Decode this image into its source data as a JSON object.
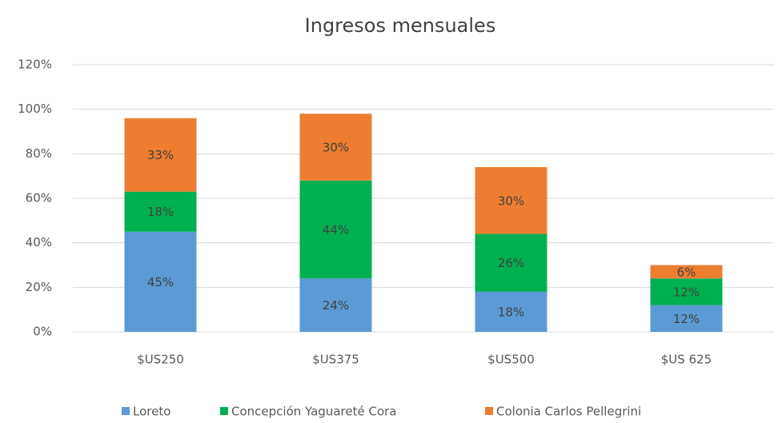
{
  "chart_data": {
    "type": "bar",
    "stacked": true,
    "title": "Ingresos mensuales",
    "categories": [
      "$US250",
      "$US375",
      "$US500",
      "$US 625"
    ],
    "series": [
      {
        "name": "Loreto",
        "color": "#5b9bd5",
        "values": [
          45,
          24,
          18,
          12
        ],
        "value_labels": [
          "45%",
          "24%",
          "18%",
          "12%"
        ]
      },
      {
        "name": "Concepción Yaguareté Cora",
        "color": "#00b050",
        "values": [
          18,
          44,
          26,
          12
        ],
        "value_labels": [
          "18%",
          "44%",
          "26%",
          "12%"
        ]
      },
      {
        "name": "Colonia Carlos Pellegrini",
        "color": "#ed7d31",
        "values": [
          33,
          30,
          30,
          6
        ],
        "value_labels": [
          "33%",
          "30%",
          "30%",
          "6%"
        ]
      }
    ],
    "ylim": [
      0,
      120
    ],
    "yticks": [
      {
        "value": 0,
        "label": "0%"
      },
      {
        "value": 20,
        "label": "20%"
      },
      {
        "value": 40,
        "label": "40%"
      },
      {
        "value": 60,
        "label": "60%"
      },
      {
        "value": 80,
        "label": "80%"
      },
      {
        "value": 100,
        "label": "100%"
      },
      {
        "value": 120,
        "label": "120%"
      }
    ],
    "grid": true,
    "legend": "bottom"
  }
}
